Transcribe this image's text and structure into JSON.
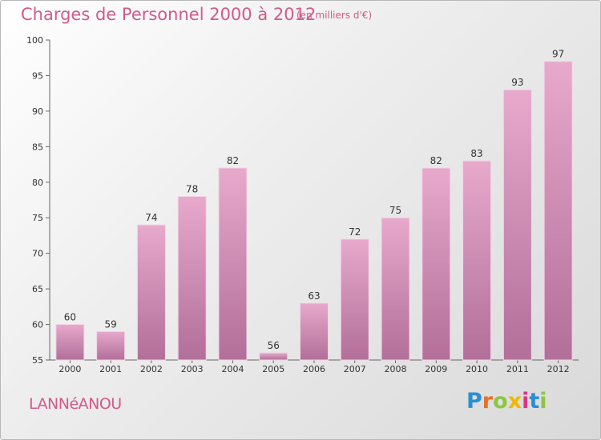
{
  "page": {
    "commune": "LANNéANOU",
    "logo": [
      "P",
      "r",
      "o",
      "x",
      "i",
      "t",
      "i"
    ]
  },
  "chart_data": {
    "type": "bar",
    "title": "Charges de Personnel 2000 à 2012",
    "subtitle": "(en milliers d'€)",
    "categories": [
      "2000",
      "2001",
      "2002",
      "2003",
      "2004",
      "2005",
      "2006",
      "2007",
      "2008",
      "2009",
      "2010",
      "2011",
      "2012"
    ],
    "values": [
      60,
      59,
      74,
      78,
      82,
      56,
      63,
      72,
      75,
      82,
      83,
      93,
      97
    ],
    "data_labels": [
      "60",
      "59",
      "74",
      "78",
      "82",
      "56",
      "63",
      "72",
      "75",
      "82",
      "83",
      "93",
      "97"
    ],
    "ylim": [
      55,
      100
    ],
    "yticks": [
      55,
      60,
      65,
      70,
      75,
      80,
      85,
      90,
      95,
      100
    ],
    "grid": false,
    "colors": {
      "bar_top": "#e7a9cc",
      "bar_bottom": "#b26f99",
      "accent": "#d05a8a"
    }
  }
}
